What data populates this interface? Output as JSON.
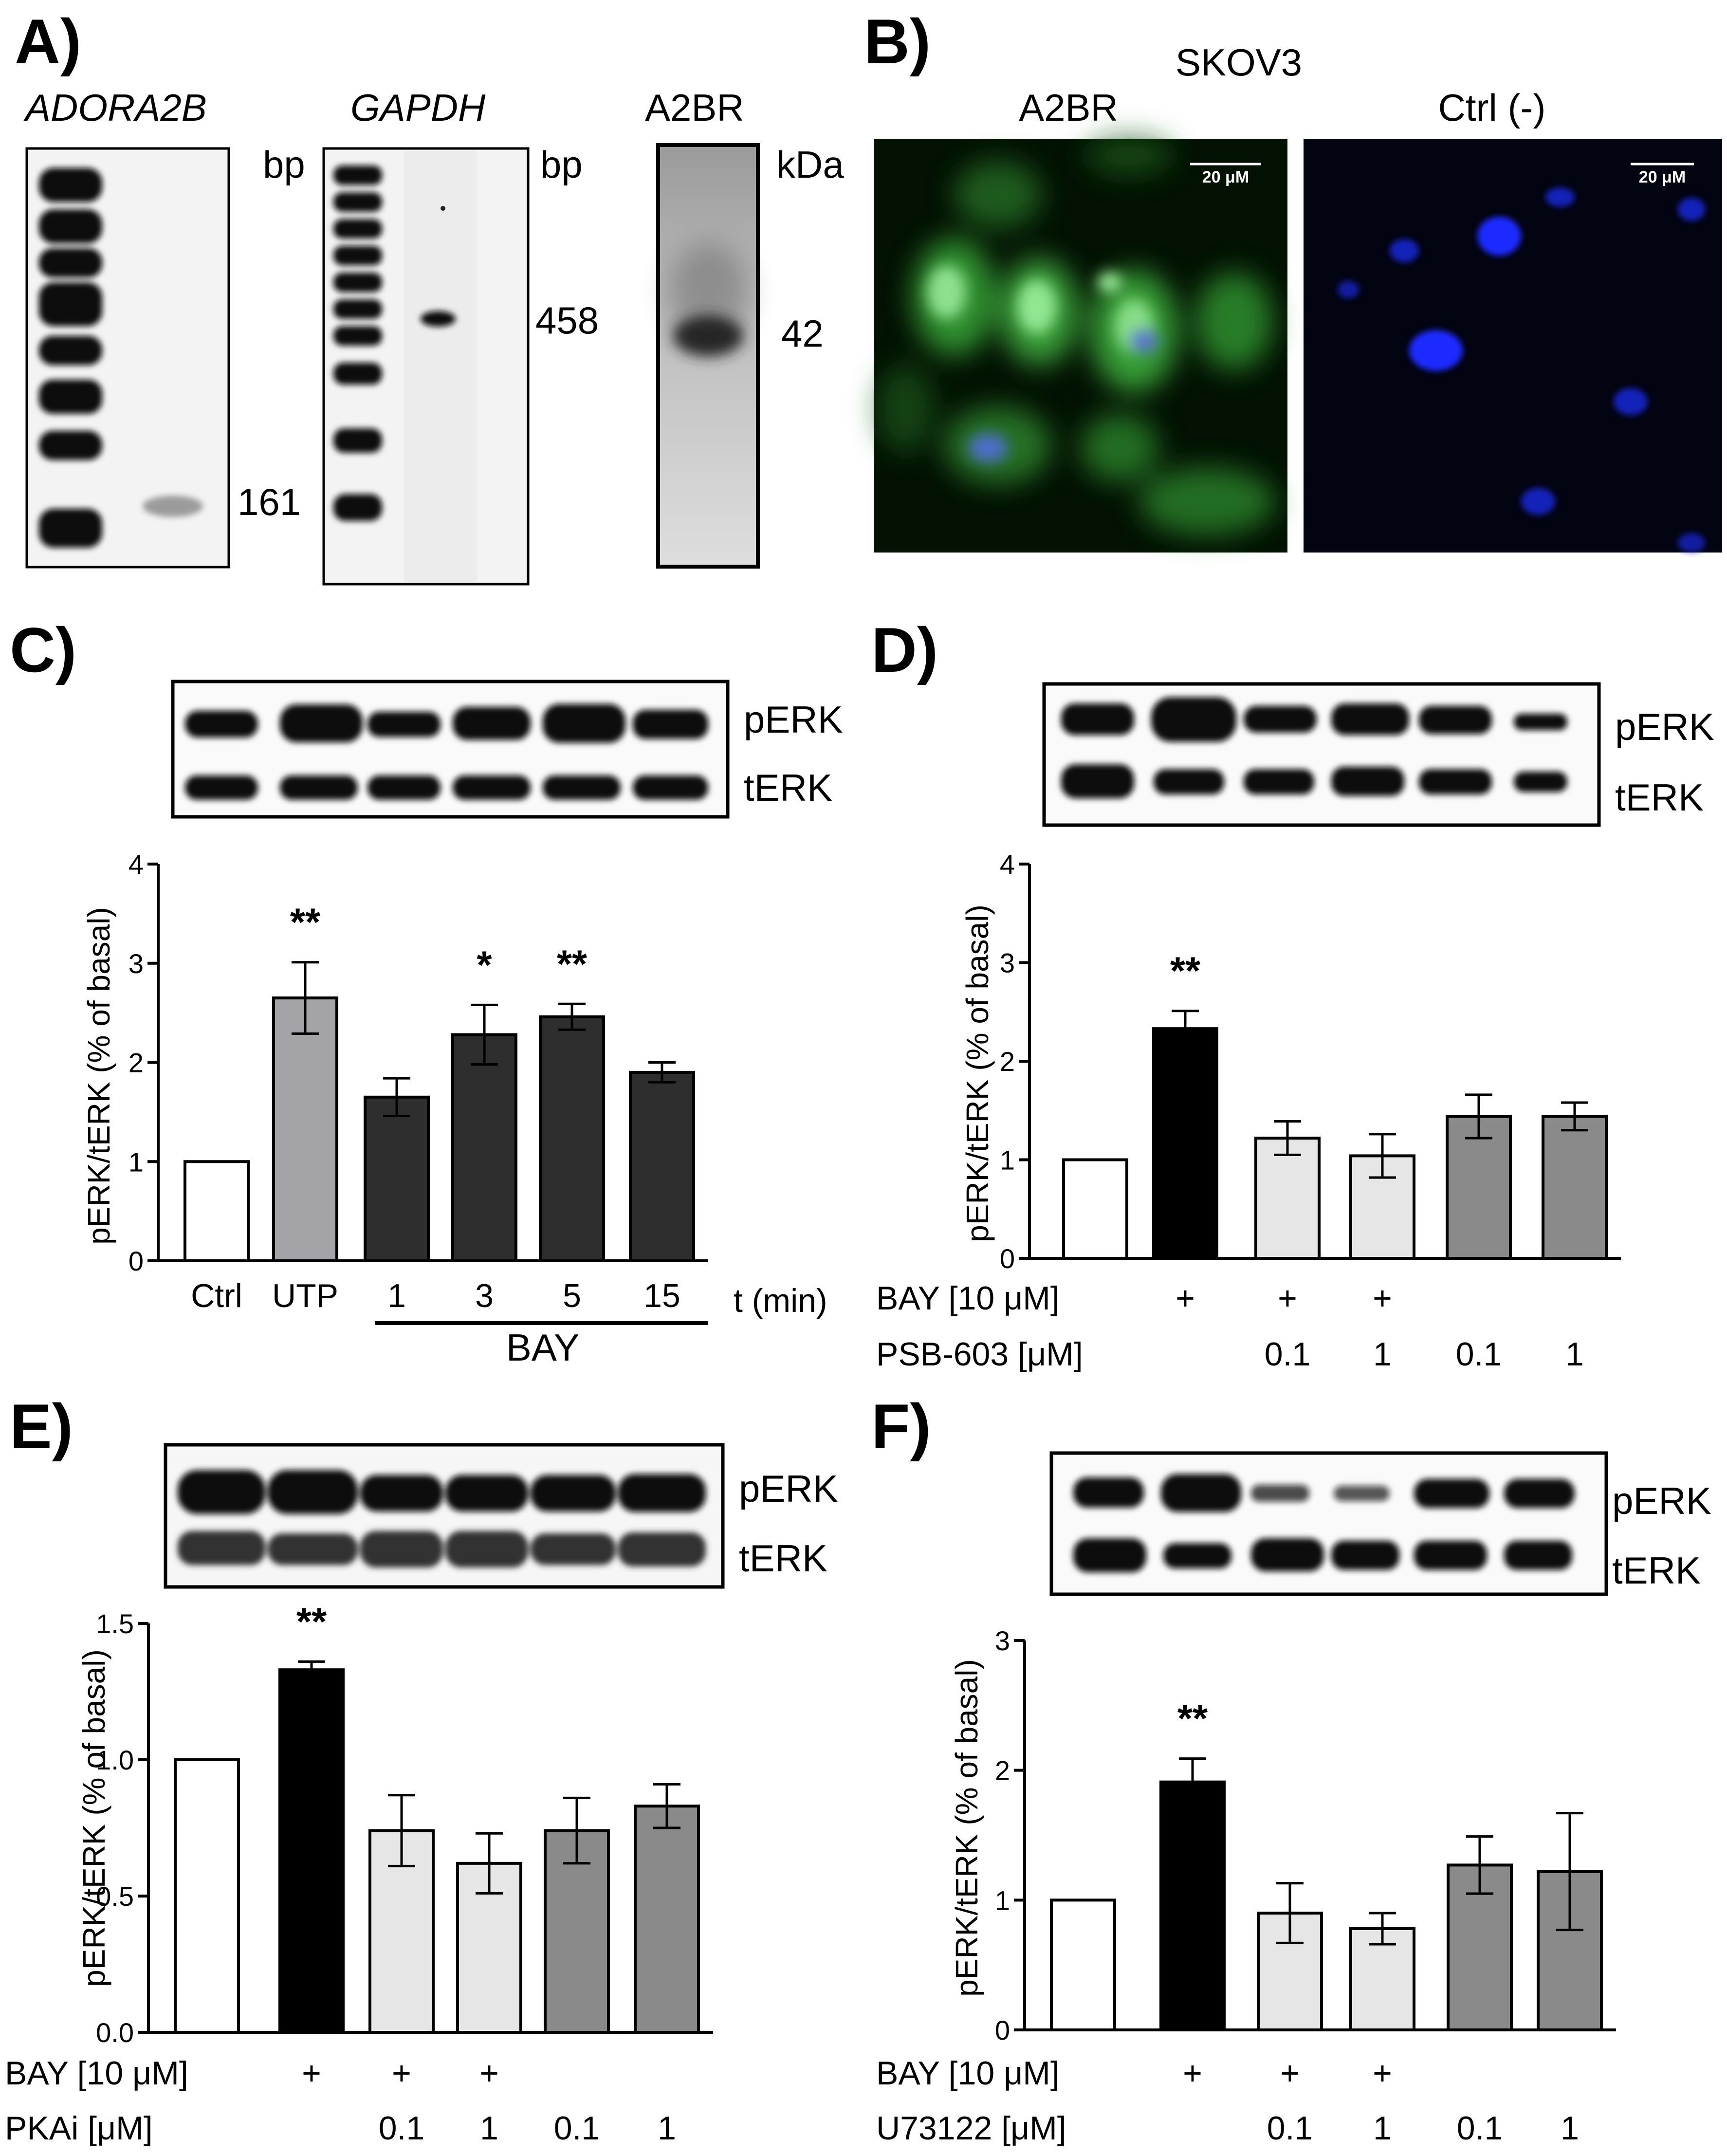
{
  "panel_letters": {
    "a": "A)",
    "b": "B)",
    "c": "C)",
    "d": "D)",
    "e": "E)",
    "f": "F)"
  },
  "panel_a": {
    "gel1_title": "ADORA2B",
    "gel2_title": "GAPDH",
    "blot_title": "A2BR",
    "gel1_unit": "bp",
    "gel2_unit": "bp",
    "blot_unit": "kDa",
    "gel1_band": "161",
    "gel2_band": "458",
    "blot_band": "42"
  },
  "panel_b": {
    "title": "SKOV3",
    "left_label": "A2BR",
    "right_label": "Ctrl (-)",
    "scale_left": "20 μM",
    "scale_right": "20 μM"
  },
  "blot_labels": {
    "perk": "pERK",
    "terk": "tERK"
  },
  "chart_data": [
    {
      "panel": "C",
      "type": "bar",
      "ylabel": "pERK/tERK (% of basal)",
      "ylim": [
        0,
        4
      ],
      "yticks": [
        "0",
        "1",
        "2",
        "3",
        "4"
      ],
      "categories": [
        "Ctrl",
        "UTP",
        "1",
        "3",
        "5",
        "15"
      ],
      "values": [
        1.0,
        2.65,
        1.65,
        2.28,
        2.46,
        1.9
      ],
      "errors": [
        0,
        0.36,
        0.19,
        0.3,
        0.13,
        0.1
      ],
      "colors": [
        "#ffffff",
        "#a3a3a8",
        "#2e2e2e",
        "#2e2e2e",
        "#2e2e2e",
        "#2e2e2e"
      ],
      "significance": [
        "",
        "**",
        "",
        "*",
        "**",
        ""
      ],
      "x_suffix": "t (min)",
      "group_label": "BAY"
    },
    {
      "panel": "D",
      "type": "bar",
      "ylabel": "pERK/tERK (% of basal)",
      "ylim": [
        0,
        4
      ],
      "yticks": [
        "0",
        "1",
        "2",
        "3",
        "4"
      ],
      "values": [
        1.0,
        2.33,
        1.22,
        1.04,
        1.44,
        1.44
      ],
      "errors": [
        0,
        0.18,
        0.17,
        0.22,
        0.22,
        0.14
      ],
      "colors": [
        "#ffffff",
        "#000000",
        "#e6e6e6",
        "#e6e6e6",
        "#8a8a8a",
        "#8a8a8a"
      ],
      "significance": [
        "",
        "**",
        "",
        "",
        "",
        ""
      ],
      "row1_label": "BAY [10 μM]",
      "row1": [
        "",
        "+",
        "+",
        "+",
        "",
        ""
      ],
      "row2_label": "PSB-603 [μM]",
      "row2": [
        "",
        "",
        "0.1",
        "1",
        "0.1",
        "1"
      ]
    },
    {
      "panel": "E",
      "type": "bar",
      "ylabel": "pERK/tERK (% of basal)",
      "ylim": [
        0,
        1.5
      ],
      "yticks": [
        "0.0",
        "0.5",
        "1.0",
        "1.5"
      ],
      "values": [
        1.0,
        1.33,
        0.74,
        0.62,
        0.74,
        0.83
      ],
      "errors": [
        0,
        0.03,
        0.13,
        0.11,
        0.12,
        0.08
      ],
      "colors": [
        "#ffffff",
        "#000000",
        "#e6e6e6",
        "#e6e6e6",
        "#8a8a8a",
        "#8a8a8a"
      ],
      "significance": [
        "",
        "**",
        "",
        "",
        "",
        ""
      ],
      "row1_label": "BAY [10 μM]",
      "row1": [
        "",
        "+",
        "+",
        "+",
        "",
        ""
      ],
      "row2_label": "PKAi [μM]",
      "row2": [
        "",
        "",
        "0.1",
        "1",
        "0.1",
        "1"
      ]
    },
    {
      "panel": "F",
      "type": "bar",
      "ylabel": "pERK/tERK (% of basal)",
      "ylim": [
        0,
        3
      ],
      "yticks": [
        "0",
        "1",
        "2",
        "3"
      ],
      "values": [
        1.0,
        1.91,
        0.9,
        0.78,
        1.27,
        1.22
      ],
      "errors": [
        0,
        0.18,
        0.23,
        0.12,
        0.22,
        0.45
      ],
      "colors": [
        "#ffffff",
        "#000000",
        "#e6e6e6",
        "#e6e6e6",
        "#8a8a8a",
        "#8a8a8a"
      ],
      "significance": [
        "",
        "**",
        "",
        "",
        "",
        ""
      ],
      "row1_label": "BAY [10 μM]",
      "row1": [
        "",
        "+",
        "+",
        "+",
        "",
        ""
      ],
      "row2_label": "U73122 [μM]",
      "row2": [
        "",
        "",
        "0.1",
        "1",
        "0.1",
        "1"
      ]
    }
  ]
}
